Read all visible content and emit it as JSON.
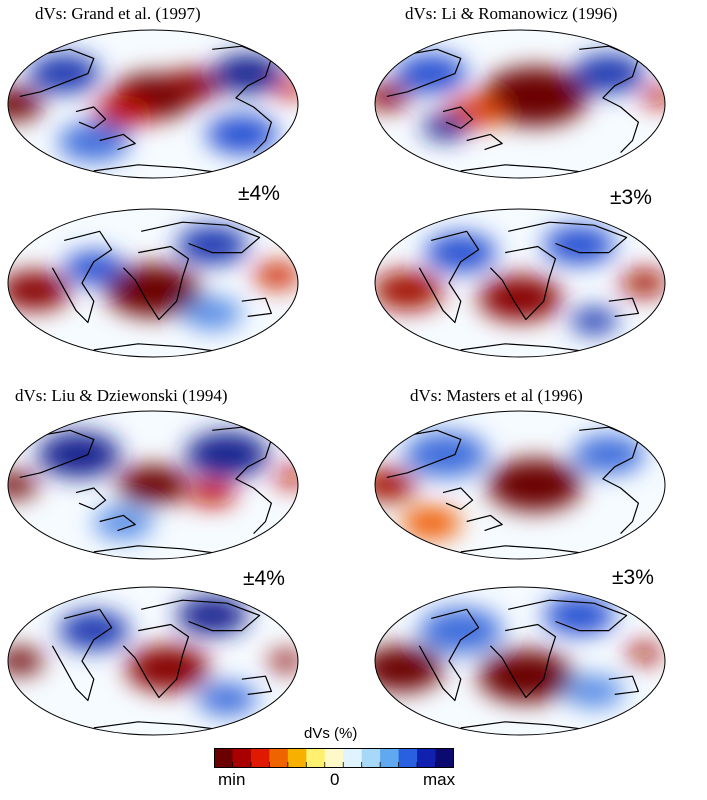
{
  "panels": [
    {
      "title": "dVs: Grand et al. (1997)",
      "range": "±4%",
      "maps": [
        {
          "view": "pacific",
          "anomalies": [
            {
              "u": 0.5,
              "v": 0.45,
              "s": 0.14,
              "a": -1.0
            },
            {
              "u": 0.63,
              "v": 0.38,
              "s": 0.1,
              "a": -0.9
            },
            {
              "u": 0.4,
              "v": 0.55,
              "s": 0.1,
              "a": -0.7
            },
            {
              "u": 0.03,
              "v": 0.5,
              "s": 0.1,
              "a": -1.0
            },
            {
              "u": 0.97,
              "v": 0.4,
              "s": 0.06,
              "a": -0.6
            },
            {
              "u": 0.2,
              "v": 0.3,
              "s": 0.12,
              "a": 0.8
            },
            {
              "u": 0.82,
              "v": 0.3,
              "s": 0.12,
              "a": 0.9
            },
            {
              "u": 0.3,
              "v": 0.75,
              "s": 0.12,
              "a": 0.6
            },
            {
              "u": 0.8,
              "v": 0.7,
              "s": 0.12,
              "a": 0.7
            }
          ]
        },
        {
          "view": "africa",
          "anomalies": [
            {
              "u": 0.5,
              "v": 0.55,
              "s": 0.16,
              "a": -1.0
            },
            {
              "u": 0.1,
              "v": 0.55,
              "s": 0.12,
              "a": -0.9
            },
            {
              "u": 0.92,
              "v": 0.45,
              "s": 0.08,
              "a": -0.6
            },
            {
              "u": 0.3,
              "v": 0.4,
              "s": 0.1,
              "a": 0.7
            },
            {
              "u": 0.7,
              "v": 0.25,
              "s": 0.12,
              "a": 0.8
            },
            {
              "u": 0.7,
              "v": 0.7,
              "s": 0.1,
              "a": 0.5
            }
          ]
        }
      ]
    },
    {
      "title": "dVs:  Li & Romanowicz (1996)",
      "range": "±3%",
      "maps": [
        {
          "view": "pacific",
          "anomalies": [
            {
              "u": 0.55,
              "v": 0.45,
              "s": 0.18,
              "a": -1.0
            },
            {
              "u": 0.35,
              "v": 0.55,
              "s": 0.1,
              "a": -0.5
            },
            {
              "u": 0.05,
              "v": 0.45,
              "s": 0.08,
              "a": -0.9
            },
            {
              "u": 0.97,
              "v": 0.45,
              "s": 0.06,
              "a": -0.7
            },
            {
              "u": 0.2,
              "v": 0.3,
              "s": 0.12,
              "a": 0.7
            },
            {
              "u": 0.8,
              "v": 0.3,
              "s": 0.12,
              "a": 0.8
            },
            {
              "u": 0.25,
              "v": 0.65,
              "s": 0.08,
              "a": 0.9
            }
          ]
        },
        {
          "view": "africa",
          "anomalies": [
            {
              "u": 0.5,
              "v": 0.6,
              "s": 0.14,
              "a": -0.9
            },
            {
              "u": 0.12,
              "v": 0.55,
              "s": 0.12,
              "a": -0.8
            },
            {
              "u": 0.92,
              "v": 0.5,
              "s": 0.08,
              "a": -0.8
            },
            {
              "u": 0.3,
              "v": 0.3,
              "s": 0.12,
              "a": 0.7
            },
            {
              "u": 0.7,
              "v": 0.25,
              "s": 0.12,
              "a": 0.7
            },
            {
              "u": 0.75,
              "v": 0.75,
              "s": 0.08,
              "a": 0.8
            }
          ]
        }
      ]
    },
    {
      "title": "dVs:  Liu & Dziewonski (1994)",
      "range": "±4%",
      "maps": [
        {
          "view": "pacific",
          "anomalies": [
            {
              "u": 0.5,
              "v": 0.5,
              "s": 0.12,
              "a": -1.0
            },
            {
              "u": 0.7,
              "v": 0.55,
              "s": 0.08,
              "a": -0.7
            },
            {
              "u": 0.03,
              "v": 0.5,
              "s": 0.08,
              "a": -1.0
            },
            {
              "u": 0.97,
              "v": 0.45,
              "s": 0.06,
              "a": -0.7
            },
            {
              "u": 0.25,
              "v": 0.3,
              "s": 0.14,
              "a": 0.9
            },
            {
              "u": 0.75,
              "v": 0.3,
              "s": 0.14,
              "a": 0.9
            },
            {
              "u": 0.4,
              "v": 0.75,
              "s": 0.1,
              "a": 0.5
            }
          ]
        },
        {
          "view": "africa",
          "anomalies": [
            {
              "u": 0.55,
              "v": 0.55,
              "s": 0.14,
              "a": -0.9
            },
            {
              "u": 0.05,
              "v": 0.5,
              "s": 0.08,
              "a": -1.0
            },
            {
              "u": 0.95,
              "v": 0.5,
              "s": 0.06,
              "a": -0.9
            },
            {
              "u": 0.3,
              "v": 0.3,
              "s": 0.12,
              "a": 0.8
            },
            {
              "u": 0.7,
              "v": 0.2,
              "s": 0.12,
              "a": 0.9
            },
            {
              "u": 0.75,
              "v": 0.75,
              "s": 0.1,
              "a": 0.6
            }
          ]
        }
      ]
    },
    {
      "title": "dVs: Masters et al (1996)",
      "range": "±3%",
      "maps": [
        {
          "view": "pacific",
          "anomalies": [
            {
              "u": 0.55,
              "v": 0.5,
              "s": 0.16,
              "a": -1.0
            },
            {
              "u": 0.05,
              "v": 0.5,
              "s": 0.1,
              "a": -0.8
            },
            {
              "u": 0.25,
              "v": 0.3,
              "s": 0.14,
              "a": 0.6
            },
            {
              "u": 0.8,
              "v": 0.3,
              "s": 0.12,
              "a": 0.6
            },
            {
              "u": 0.2,
              "v": 0.75,
              "s": 0.1,
              "a": -0.4
            }
          ]
        },
        {
          "view": "africa",
          "anomalies": [
            {
              "u": 0.52,
              "v": 0.6,
              "s": 0.16,
              "a": -1.0
            },
            {
              "u": 0.1,
              "v": 0.55,
              "s": 0.14,
              "a": -1.0
            },
            {
              "u": 0.92,
              "v": 0.45,
              "s": 0.06,
              "a": -0.8
            },
            {
              "u": 0.3,
              "v": 0.3,
              "s": 0.14,
              "a": 0.6
            },
            {
              "u": 0.7,
              "v": 0.2,
              "s": 0.12,
              "a": 0.7
            },
            {
              "u": 0.75,
              "v": 0.7,
              "s": 0.1,
              "a": 0.5
            }
          ]
        }
      ]
    }
  ],
  "colorbar": {
    "title": "dVs (%)",
    "min_label": "min",
    "zero_label": "0",
    "max_label": "max",
    "colors": [
      "#6b0000",
      "#a80000",
      "#e01a00",
      "#f06400",
      "#f8b000",
      "#fff070",
      "#fff8c8",
      "#e0f4ff",
      "#a8d8f8",
      "#60a8f0",
      "#2860e0",
      "#1020b0",
      "#0a0a70"
    ]
  }
}
